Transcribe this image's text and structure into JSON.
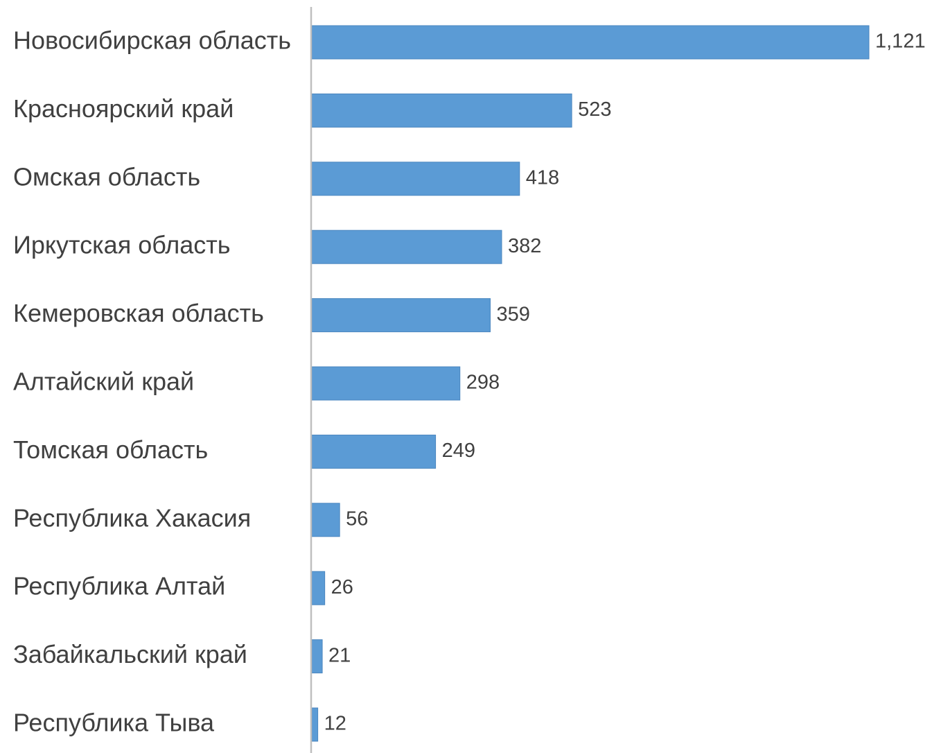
{
  "chart_data": {
    "type": "bar",
    "orientation": "horizontal",
    "categories": [
      "Новосибирская область",
      "Красноярский край",
      "Омская область",
      "Иркутская область",
      "Кемеровская область",
      "Алтайский край",
      "Томская область",
      "Республика Хакасия",
      "Республика Алтай",
      "Забайкальский край",
      "Республика Тыва"
    ],
    "values": [
      1121,
      523,
      418,
      382,
      359,
      298,
      249,
      56,
      26,
      21,
      12
    ],
    "value_labels": [
      "1,121",
      "523",
      "418",
      "382",
      "359",
      "298",
      "249",
      "56",
      "26",
      "21",
      "12"
    ],
    "title": "",
    "xlabel": "",
    "ylabel": "",
    "xlim": [
      0,
      1121
    ],
    "grid": false,
    "legend": "none",
    "colors": {
      "bar": "#5b9bd5",
      "bar_border": "#4a86bf",
      "axis": "#bfbfbf",
      "text": "#404040"
    }
  }
}
